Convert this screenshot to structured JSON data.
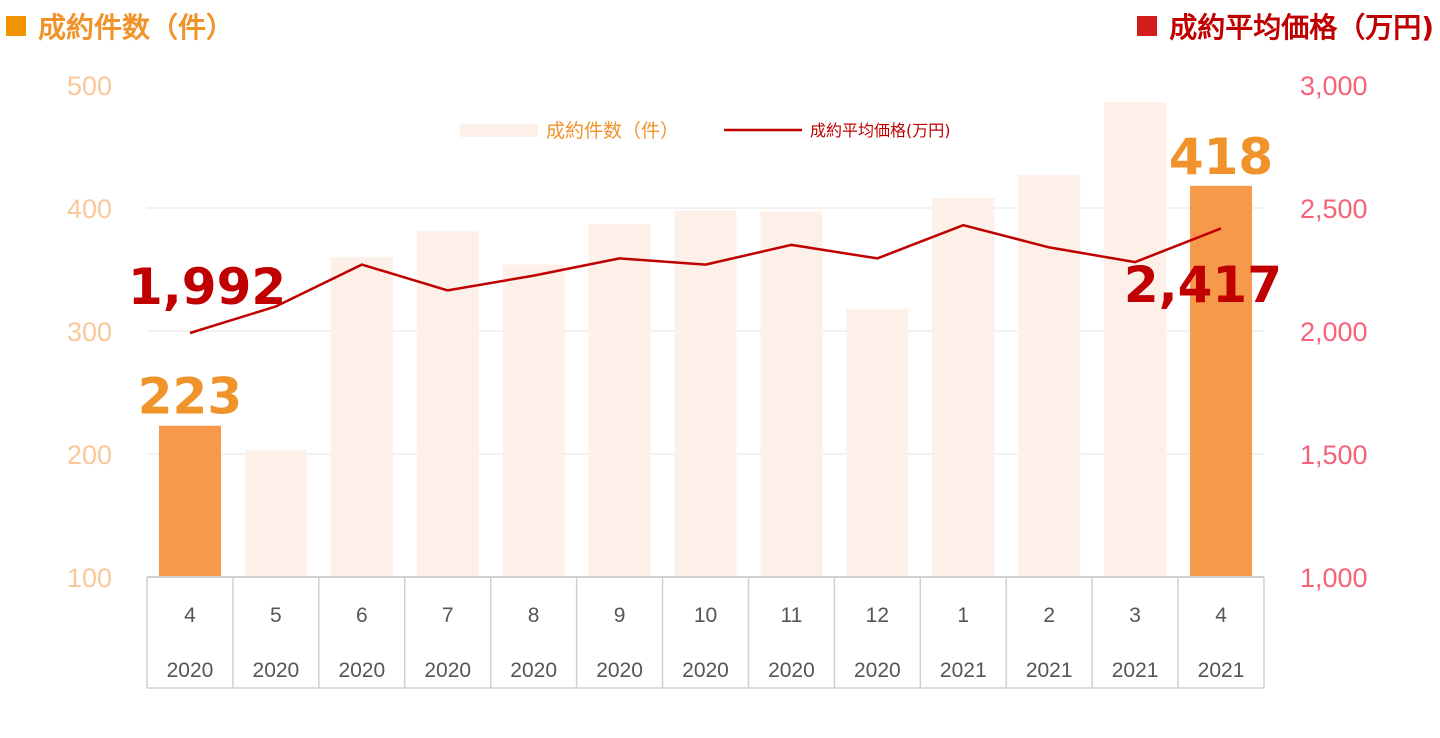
{
  "header": {
    "left_title": "成約件数（件）",
    "right_title": "成約平均価格（万円)",
    "left_color": "#F29400",
    "right_color": "#D41E1E"
  },
  "chart_data": {
    "type": "bar",
    "categories": [
      [
        "4",
        "2020"
      ],
      [
        "5",
        "2020"
      ],
      [
        "6",
        "2020"
      ],
      [
        "7",
        "2020"
      ],
      [
        "8",
        "2020"
      ],
      [
        "9",
        "2020"
      ],
      [
        "10",
        "2020"
      ],
      [
        "11",
        "2020"
      ],
      [
        "12",
        "2020"
      ],
      [
        "1",
        "2021"
      ],
      [
        "2",
        "2021"
      ],
      [
        "3",
        "2021"
      ],
      [
        "4",
        "2021"
      ]
    ],
    "series": [
      {
        "name": "成約件数（件）",
        "type": "bar",
        "axis": "left",
        "color_highlight": "#F7994A",
        "color_muted": "#FCF0E8",
        "values": [
          223,
          203,
          360,
          381,
          354,
          387,
          398,
          397,
          318,
          408,
          427,
          486,
          418
        ],
        "highlight": [
          true,
          false,
          false,
          false,
          false,
          false,
          false,
          false,
          false,
          false,
          false,
          false,
          true
        ]
      },
      {
        "name": "成約平均価格(万円)",
        "type": "line",
        "axis": "right",
        "color": "#C00000",
        "values": [
          1992,
          2100,
          2270,
          2165,
          2225,
          2295,
          2270,
          2350,
          2295,
          2430,
          2340,
          2280,
          2417
        ]
      }
    ],
    "y_left": {
      "ylim": [
        100,
        500
      ],
      "ticks": [
        100,
        200,
        300,
        400,
        500
      ],
      "tick_labels": [
        "100",
        "200",
        "300",
        "400",
        "500"
      ],
      "color": "#F9C89A"
    },
    "y_right": {
      "ylim": [
        1000,
        3000
      ],
      "ticks": [
        1000,
        1500,
        2000,
        2500,
        3000
      ],
      "tick_labels": [
        "1,000",
        "1,500",
        "2,000",
        "2,500",
        "3,000"
      ],
      "color": "#F4637A"
    },
    "grid": true,
    "legend_position": "top-center",
    "data_labels": [
      {
        "text": "223",
        "series": 0,
        "index": 0,
        "color": "#F0932B"
      },
      {
        "text": "418",
        "series": 0,
        "index": 12,
        "color": "#F0932B"
      },
      {
        "text": "1,992",
        "series": 1,
        "index": 0,
        "color": "#C00000"
      },
      {
        "text": "2,417",
        "series": 1,
        "index": 12,
        "color": "#C00000"
      }
    ]
  }
}
